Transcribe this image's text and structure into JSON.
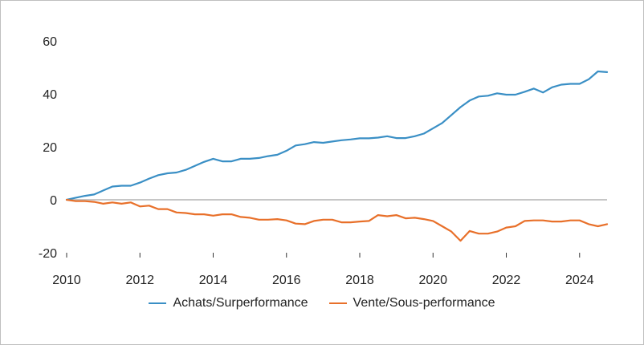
{
  "chart_data": {
    "type": "line",
    "title": "",
    "xlabel": "",
    "ylabel": "",
    "xlim": [
      2010,
      2024.75
    ],
    "ylim": [
      -20,
      60
    ],
    "x_ticks": [
      "2010",
      "2012",
      "2014",
      "2016",
      "2018",
      "2020",
      "2022",
      "2024"
    ],
    "y_ticks": [
      "60",
      "40",
      "20",
      "0",
      "-20"
    ],
    "grid": false,
    "legend_position": "bottom",
    "series": [
      {
        "name": "Achats/Surperformance",
        "color": "#3a8fc5",
        "points": [
          [
            2010.0,
            0
          ],
          [
            2010.25,
            0.8
          ],
          [
            2010.5,
            1.5
          ],
          [
            2010.75,
            2
          ],
          [
            2011.0,
            3.5
          ],
          [
            2011.25,
            5
          ],
          [
            2011.5,
            5.3
          ],
          [
            2011.75,
            5.3
          ],
          [
            2012.0,
            6.5
          ],
          [
            2012.25,
            8
          ],
          [
            2012.5,
            9.3
          ],
          [
            2012.75,
            10
          ],
          [
            2013.0,
            10.3
          ],
          [
            2013.25,
            11.3
          ],
          [
            2013.5,
            12.8
          ],
          [
            2013.75,
            14.3
          ],
          [
            2014.0,
            15.5
          ],
          [
            2014.25,
            14.5
          ],
          [
            2014.5,
            14.5
          ],
          [
            2014.75,
            15.5
          ],
          [
            2015.0,
            15.5
          ],
          [
            2015.25,
            15.8
          ],
          [
            2015.5,
            16.5
          ],
          [
            2015.75,
            17
          ],
          [
            2016.0,
            18.5
          ],
          [
            2016.25,
            20.5
          ],
          [
            2016.5,
            21
          ],
          [
            2016.75,
            21.8
          ],
          [
            2017.0,
            21.5
          ],
          [
            2017.25,
            22
          ],
          [
            2017.5,
            22.5
          ],
          [
            2017.75,
            22.8
          ],
          [
            2018.0,
            23.2
          ],
          [
            2018.25,
            23.2
          ],
          [
            2018.5,
            23.5
          ],
          [
            2018.75,
            24
          ],
          [
            2019.0,
            23.3
          ],
          [
            2019.25,
            23.3
          ],
          [
            2019.5,
            24
          ],
          [
            2019.75,
            25
          ],
          [
            2020.0,
            27
          ],
          [
            2020.25,
            29
          ],
          [
            2020.5,
            32
          ],
          [
            2020.75,
            35
          ],
          [
            2021.0,
            37.5
          ],
          [
            2021.25,
            39
          ],
          [
            2021.5,
            39.3
          ],
          [
            2021.75,
            40.2
          ],
          [
            2022.0,
            39.7
          ],
          [
            2022.25,
            39.7
          ],
          [
            2022.5,
            40.8
          ],
          [
            2022.75,
            42
          ],
          [
            2023.0,
            40.5
          ],
          [
            2023.25,
            42.5
          ],
          [
            2023.5,
            43.5
          ],
          [
            2023.75,
            43.8
          ],
          [
            2024.0,
            43.8
          ],
          [
            2024.25,
            45.5
          ],
          [
            2024.5,
            48.5
          ],
          [
            2024.75,
            48.2
          ]
        ]
      },
      {
        "name": "Vente/Sous-performance",
        "color": "#e8702a",
        "points": [
          [
            2010.0,
            0
          ],
          [
            2010.25,
            -0.5
          ],
          [
            2010.5,
            -0.5
          ],
          [
            2010.75,
            -0.8
          ],
          [
            2011.0,
            -1.5
          ],
          [
            2011.25,
            -1
          ],
          [
            2011.5,
            -1.5
          ],
          [
            2011.75,
            -1
          ],
          [
            2012.0,
            -2.5
          ],
          [
            2012.25,
            -2.2
          ],
          [
            2012.5,
            -3.5
          ],
          [
            2012.75,
            -3.5
          ],
          [
            2013.0,
            -4.8
          ],
          [
            2013.25,
            -5
          ],
          [
            2013.5,
            -5.5
          ],
          [
            2013.75,
            -5.5
          ],
          [
            2014.0,
            -6
          ],
          [
            2014.25,
            -5.5
          ],
          [
            2014.5,
            -5.5
          ],
          [
            2014.75,
            -6.5
          ],
          [
            2015.0,
            -6.8
          ],
          [
            2015.25,
            -7.5
          ],
          [
            2015.5,
            -7.5
          ],
          [
            2015.75,
            -7.3
          ],
          [
            2016.0,
            -7.8
          ],
          [
            2016.25,
            -9
          ],
          [
            2016.5,
            -9.2
          ],
          [
            2016.75,
            -8
          ],
          [
            2017.0,
            -7.5
          ],
          [
            2017.25,
            -7.5
          ],
          [
            2017.5,
            -8.5
          ],
          [
            2017.75,
            -8.5
          ],
          [
            2018.0,
            -8.2
          ],
          [
            2018.25,
            -8
          ],
          [
            2018.5,
            -5.8
          ],
          [
            2018.75,
            -6.2
          ],
          [
            2019.0,
            -5.8
          ],
          [
            2019.25,
            -7
          ],
          [
            2019.5,
            -6.8
          ],
          [
            2019.75,
            -7.3
          ],
          [
            2020.0,
            -8
          ],
          [
            2020.25,
            -10
          ],
          [
            2020.5,
            -12
          ],
          [
            2020.75,
            -15.5
          ],
          [
            2021.0,
            -11.8
          ],
          [
            2021.25,
            -12.8
          ],
          [
            2021.5,
            -12.8
          ],
          [
            2021.75,
            -12
          ],
          [
            2022.0,
            -10.5
          ],
          [
            2022.25,
            -10
          ],
          [
            2022.5,
            -8
          ],
          [
            2022.75,
            -7.8
          ],
          [
            2023.0,
            -7.8
          ],
          [
            2023.25,
            -8.2
          ],
          [
            2023.5,
            -8.2
          ],
          [
            2023.75,
            -7.8
          ],
          [
            2024.0,
            -7.8
          ],
          [
            2024.25,
            -9.2
          ],
          [
            2024.5,
            -10
          ],
          [
            2024.75,
            -9.2
          ]
        ]
      }
    ]
  }
}
